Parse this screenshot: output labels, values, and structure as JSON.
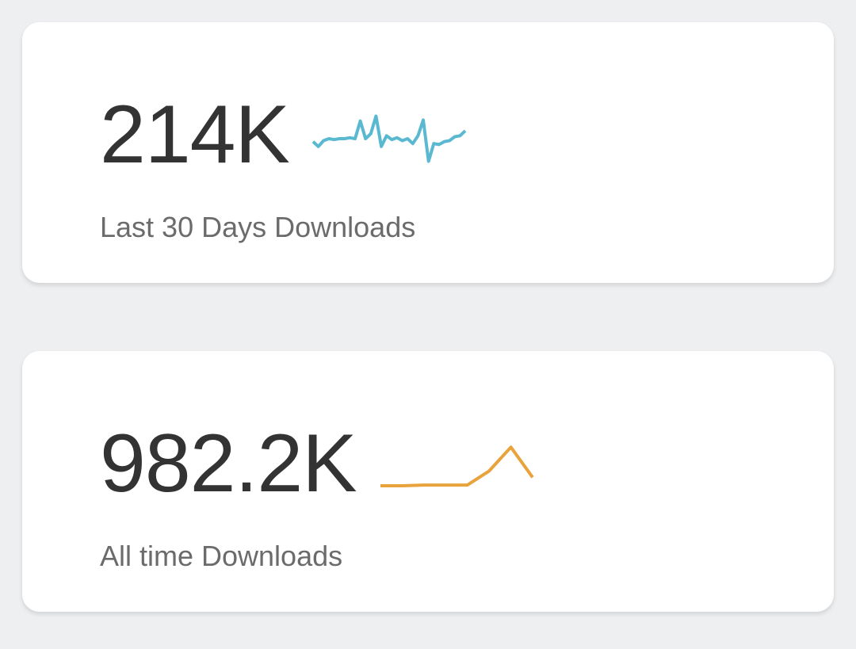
{
  "cards": [
    {
      "value": "214K",
      "label": "Last 30 Days Downloads",
      "sparkline": {
        "type": "line",
        "color": "#5ab9d1",
        "ylim": [
          0,
          50
        ],
        "values": [
          22,
          17,
          23,
          25,
          24,
          25,
          25,
          26,
          25,
          43,
          25,
          30,
          48,
          17,
          28,
          24,
          26,
          23,
          25,
          20,
          28,
          44,
          2,
          20,
          19,
          22,
          23,
          27,
          28,
          33
        ]
      }
    },
    {
      "value": "982.2K",
      "label": "All time Downloads",
      "sparkline": {
        "type": "line",
        "color": "#e8a33d",
        "ylim": [
          0,
          70
        ],
        "values": [
          9,
          9,
          10,
          10,
          10,
          30,
          64,
          21
        ]
      }
    }
  ]
}
